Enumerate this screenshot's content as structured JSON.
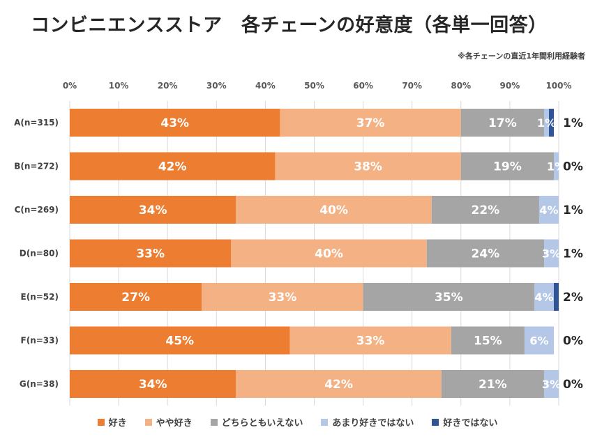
{
  "chart_data": {
    "type": "bar",
    "orientation": "horizontal",
    "stacked": true,
    "title": "コンビニエンスストア　各チェーンの好意度（各単一回答）",
    "note": "※各チェーンの直近1年間利用経験者",
    "xlim": [
      0,
      100
    ],
    "x_ticks": [
      "0%",
      "10%",
      "20%",
      "30%",
      "40%",
      "50%",
      "60%",
      "70%",
      "80%",
      "90%",
      "100%"
    ],
    "categories": [
      "A(n=315)",
      "B(n=272)",
      "C(n=269)",
      "D(n=80)",
      "E(n=52)",
      "F(n=33)",
      "G(n=38)"
    ],
    "series": [
      {
        "name": "好き",
        "color": "#ED7D31",
        "values": [
          43,
          42,
          34,
          33,
          27,
          45,
          34
        ]
      },
      {
        "name": "やや好き",
        "color": "#F4B183",
        "values": [
          37,
          38,
          40,
          40,
          33,
          33,
          42
        ]
      },
      {
        "name": "どちらともいえない",
        "color": "#A5A5A5",
        "values": [
          17,
          19,
          22,
          24,
          35,
          15,
          21
        ]
      },
      {
        "name": "あまり好きではない",
        "color": "#B4C7E7",
        "values": [
          1,
          1,
          4,
          3,
          4,
          6,
          3
        ]
      },
      {
        "name": "好きではない",
        "color": "#2F5597",
        "values": [
          1,
          0,
          1,
          1,
          2,
          0,
          0
        ]
      }
    ],
    "data_labels": [
      [
        "43%",
        "37%",
        "17%",
        "1%",
        "1%"
      ],
      [
        "42%",
        "38%",
        "19%",
        "1%",
        "0%"
      ],
      [
        "34%",
        "40%",
        "22%",
        "4%",
        "1%"
      ],
      [
        "33%",
        "40%",
        "24%",
        "3%",
        "1%"
      ],
      [
        "27%",
        "33%",
        "35%",
        "4%",
        "2%"
      ],
      [
        "45%",
        "33%",
        "15%",
        "6%",
        "0%"
      ],
      [
        "34%",
        "42%",
        "21%",
        "3%",
        "0%"
      ]
    ],
    "legend_position": "bottom",
    "grid": true
  }
}
